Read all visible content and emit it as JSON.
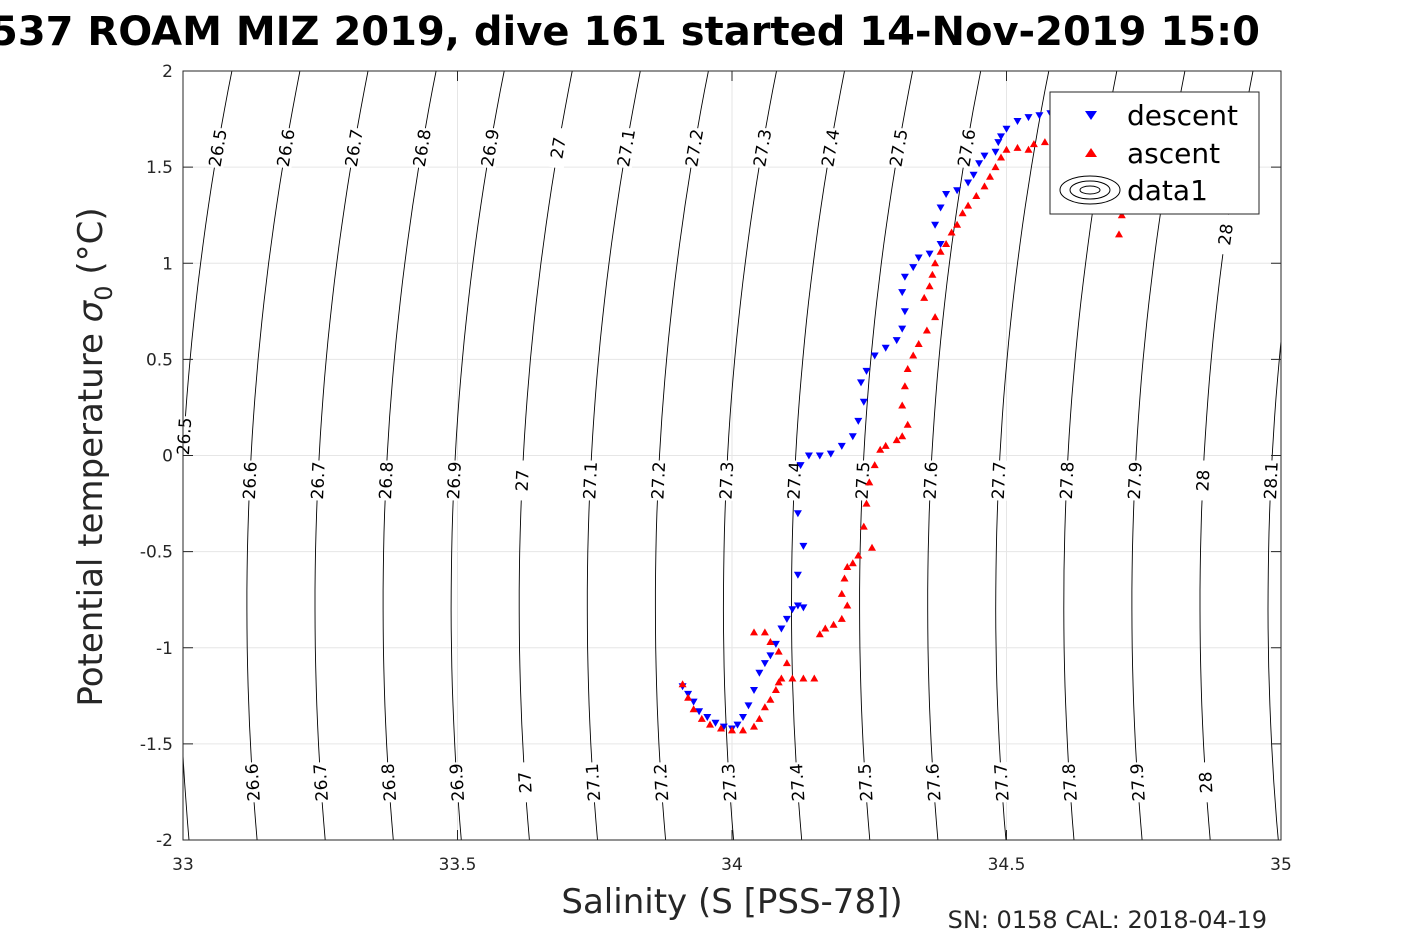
{
  "chart_data": {
    "type": "scatter",
    "title": "537 ROAM MIZ 2019, dive 161 started 14-Nov-2019 15:0",
    "xlabel": "Salinity (S [PSS-78])",
    "ylabel_main": "Potential temperature ",
    "ylabel_symbol": "σ",
    "ylabel_sub": "0",
    "ylabel_unit": " (°C)",
    "subtitle": "SN: 0158  CAL: 2018-04-19",
    "xlim": [
      33,
      35
    ],
    "ylim": [
      -2,
      2
    ],
    "xticks": [
      33,
      33.5,
      34,
      34.5,
      35
    ],
    "xtick_labels": [
      "33",
      "33.5",
      "34",
      "34.5",
      "35"
    ],
    "yticks": [
      -2,
      -1.5,
      -1,
      -0.5,
      0,
      0.5,
      1,
      1.5,
      2
    ],
    "ytick_labels": [
      "-2",
      "-1.5",
      "-1",
      "-0.5",
      "0",
      "0.5",
      "1",
      "1.5",
      "2"
    ],
    "grid": true,
    "legend_position": "top-right",
    "legend": [
      "descent",
      "ascent",
      "data1"
    ],
    "contours": {
      "levels": [
        "26.5",
        "26.6",
        "26.7",
        "26.8",
        "26.9",
        "27",
        "27.1",
        "27.2",
        "27.3",
        "27.4",
        "27.5",
        "27.6",
        "27.7",
        "27.8",
        "27.9",
        "28",
        "28.1"
      ],
      "x_at_t0": [
        33.0,
        33.124,
        33.248,
        33.372,
        33.496,
        33.62,
        33.744,
        33.868,
        33.992,
        34.116,
        34.24,
        34.364,
        34.488,
        34.612,
        34.736,
        34.86,
        34.984
      ],
      "label_rows": [
        {
          "t": 1.6,
          "levels": [
            "26.5",
            "26.6",
            "26.7",
            "26.8",
            "26.9",
            "27",
            "27.1",
            "27.2",
            "27.3",
            "27.4",
            "27.5",
            "27.6"
          ]
        },
        {
          "t": 1.15,
          "levels": [
            "28"
          ]
        },
        {
          "t": 0.1,
          "levels": [
            "26.5"
          ]
        },
        {
          "t": -0.13,
          "levels": [
            "26.6",
            "26.7",
            "26.8",
            "26.9",
            "27",
            "27.1",
            "27.2",
            "27.3",
            "27.4",
            "27.5",
            "27.6",
            "27.7",
            "27.8",
            "27.9",
            "28",
            "28.1"
          ]
        },
        {
          "t": -1.7,
          "levels": [
            "26.6",
            "26.7",
            "26.8",
            "26.9",
            "27",
            "27.1",
            "27.2",
            "27.3",
            "27.4",
            "27.5",
            "27.6",
            "27.7",
            "27.8",
            "27.9",
            "28"
          ]
        }
      ]
    },
    "series": [
      {
        "name": "descent",
        "color": "#0000ff",
        "marker": "triangle-down",
        "points": [
          [
            33.91,
            -1.2
          ],
          [
            33.92,
            -1.24
          ],
          [
            33.93,
            -1.28
          ],
          [
            33.94,
            -1.33
          ],
          [
            33.955,
            -1.36
          ],
          [
            33.97,
            -1.39
          ],
          [
            33.985,
            -1.41
          ],
          [
            34.0,
            -1.42
          ],
          [
            34.01,
            -1.4
          ],
          [
            34.02,
            -1.36
          ],
          [
            34.03,
            -1.3
          ],
          [
            34.04,
            -1.22
          ],
          [
            34.05,
            -1.13
          ],
          [
            34.06,
            -1.08
          ],
          [
            34.07,
            -1.04
          ],
          [
            34.08,
            -0.98
          ],
          [
            34.09,
            -0.9
          ],
          [
            34.1,
            -0.85
          ],
          [
            34.11,
            -0.8
          ],
          [
            34.12,
            -0.78
          ],
          [
            34.13,
            -0.79
          ],
          [
            34.12,
            -0.62
          ],
          [
            34.13,
            -0.47
          ],
          [
            34.12,
            -0.3
          ],
          [
            34.125,
            -0.05
          ],
          [
            34.14,
            0.0
          ],
          [
            34.16,
            0.0
          ],
          [
            34.18,
            0.01
          ],
          [
            34.2,
            0.05
          ],
          [
            34.22,
            0.1
          ],
          [
            34.23,
            0.18
          ],
          [
            34.24,
            0.28
          ],
          [
            34.235,
            0.38
          ],
          [
            34.245,
            0.44
          ],
          [
            34.26,
            0.52
          ],
          [
            34.28,
            0.56
          ],
          [
            34.3,
            0.6
          ],
          [
            34.31,
            0.66
          ],
          [
            34.315,
            0.75
          ],
          [
            34.31,
            0.85
          ],
          [
            34.315,
            0.93
          ],
          [
            34.33,
            0.98
          ],
          [
            34.34,
            1.03
          ],
          [
            34.36,
            1.05
          ],
          [
            34.38,
            1.1
          ],
          [
            34.37,
            1.2
          ],
          [
            34.38,
            1.29
          ],
          [
            34.39,
            1.36
          ],
          [
            34.41,
            1.38
          ],
          [
            34.43,
            1.42
          ],
          [
            34.44,
            1.46
          ],
          [
            34.45,
            1.52
          ],
          [
            34.46,
            1.56
          ],
          [
            34.48,
            1.58
          ],
          [
            34.485,
            1.63
          ],
          [
            34.49,
            1.66
          ],
          [
            34.5,
            1.7
          ],
          [
            34.52,
            1.74
          ],
          [
            34.54,
            1.76
          ],
          [
            34.56,
            1.77
          ],
          [
            34.58,
            1.78
          ],
          [
            34.6,
            1.76
          ],
          [
            34.61,
            1.73
          ],
          [
            34.63,
            1.74
          ]
        ]
      },
      {
        "name": "ascent",
        "color": "#ff0000",
        "marker": "triangle-up",
        "points": [
          [
            33.91,
            -1.19
          ],
          [
            33.92,
            -1.26
          ],
          [
            33.93,
            -1.32
          ],
          [
            33.945,
            -1.37
          ],
          [
            33.96,
            -1.4
          ],
          [
            33.98,
            -1.42
          ],
          [
            34.0,
            -1.43
          ],
          [
            34.02,
            -1.43
          ],
          [
            34.04,
            -1.41
          ],
          [
            34.05,
            -1.37
          ],
          [
            34.06,
            -1.31
          ],
          [
            34.07,
            -1.27
          ],
          [
            34.08,
            -1.22
          ],
          [
            34.085,
            -1.18
          ],
          [
            34.09,
            -1.16
          ],
          [
            34.11,
            -1.16
          ],
          [
            34.13,
            -1.16
          ],
          [
            34.15,
            -1.16
          ],
          [
            34.1,
            -1.08
          ],
          [
            34.085,
            -1.02
          ],
          [
            34.07,
            -0.97
          ],
          [
            34.06,
            -0.92
          ],
          [
            34.04,
            -0.92
          ],
          [
            34.16,
            -0.93
          ],
          [
            34.17,
            -0.9
          ],
          [
            34.185,
            -0.88
          ],
          [
            34.2,
            -0.85
          ],
          [
            34.21,
            -0.78
          ],
          [
            34.2,
            -0.72
          ],
          [
            34.205,
            -0.64
          ],
          [
            34.21,
            -0.58
          ],
          [
            34.22,
            -0.56
          ],
          [
            34.23,
            -0.52
          ],
          [
            34.255,
            -0.48
          ],
          [
            34.24,
            -0.37
          ],
          [
            34.245,
            -0.25
          ],
          [
            34.25,
            -0.14
          ],
          [
            34.26,
            -0.05
          ],
          [
            34.27,
            0.03
          ],
          [
            34.28,
            0.05
          ],
          [
            34.3,
            0.08
          ],
          [
            34.31,
            0.1
          ],
          [
            34.32,
            0.16
          ],
          [
            34.31,
            0.26
          ],
          [
            34.315,
            0.36
          ],
          [
            34.32,
            0.45
          ],
          [
            34.33,
            0.52
          ],
          [
            34.34,
            0.58
          ],
          [
            34.355,
            0.65
          ],
          [
            34.37,
            0.72
          ],
          [
            34.35,
            0.82
          ],
          [
            34.36,
            0.88
          ],
          [
            34.365,
            0.94
          ],
          [
            34.37,
            1.0
          ],
          [
            34.38,
            1.06
          ],
          [
            34.39,
            1.1
          ],
          [
            34.4,
            1.16
          ],
          [
            34.41,
            1.2
          ],
          [
            34.42,
            1.26
          ],
          [
            34.43,
            1.3
          ],
          [
            34.445,
            1.35
          ],
          [
            34.46,
            1.4
          ],
          [
            34.47,
            1.45
          ],
          [
            34.48,
            1.5
          ],
          [
            34.49,
            1.55
          ],
          [
            34.5,
            1.59
          ],
          [
            34.52,
            1.6
          ],
          [
            34.54,
            1.59
          ],
          [
            34.55,
            1.62
          ],
          [
            34.57,
            1.63
          ],
          [
            34.59,
            1.66
          ],
          [
            34.61,
            1.69
          ],
          [
            34.64,
            1.71
          ],
          [
            34.68,
            1.55
          ],
          [
            34.7,
            1.4
          ],
          [
            34.71,
            1.25
          ],
          [
            34.705,
            1.15
          ]
        ]
      }
    ]
  }
}
